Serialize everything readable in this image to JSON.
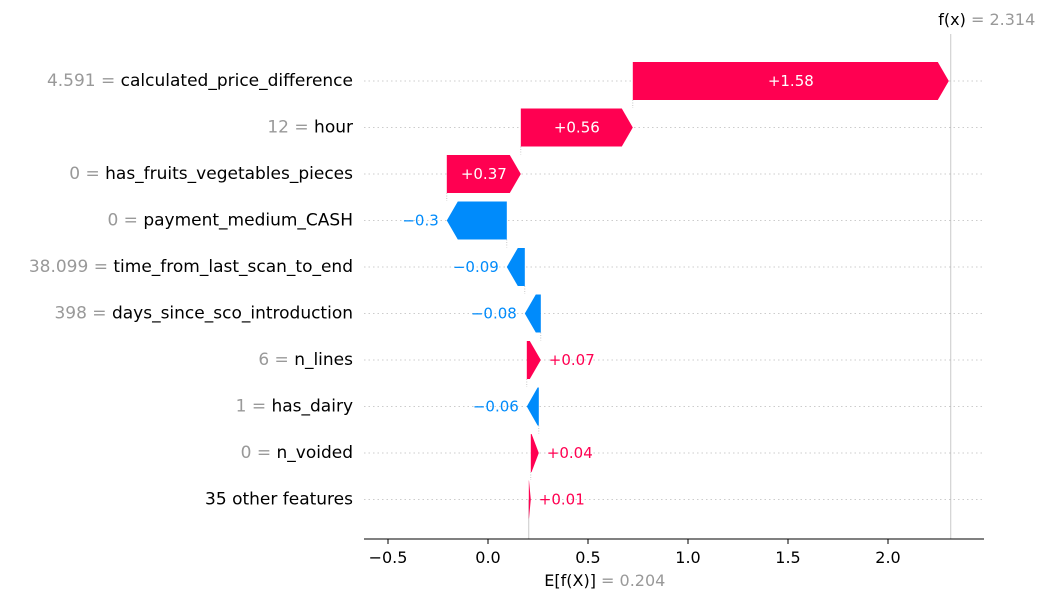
{
  "chart_data": {
    "type": "waterfall",
    "title": "",
    "xlabel": "",
    "ylabel": "",
    "base_value": 0.204,
    "base_value_text": "0.204",
    "base_value_label": "E[f(X)]",
    "output_value": 2.314,
    "output_value_text": "2.314",
    "output_value_label": "f(x)",
    "xlim": [
      -0.62,
      2.48
    ],
    "xticks": [
      -0.5,
      0.0,
      0.5,
      1.0,
      1.5,
      2.0
    ],
    "xtick_labels": [
      "−0.5",
      "0.0",
      "0.5",
      "1.0",
      "1.5",
      "2.0"
    ],
    "colors": {
      "positive": "#ff0051",
      "negative": "#008bfb",
      "muted": "#999999",
      "grid": "#cccccc"
    },
    "features": [
      {
        "value": "4.591",
        "name": "calculated_price_difference",
        "contribution": 1.58,
        "label": "+1.58"
      },
      {
        "value": "12",
        "name": "hour",
        "contribution": 0.56,
        "label": "+0.56"
      },
      {
        "value": "0",
        "name": "has_fruits_vegetables_pieces",
        "contribution": 0.37,
        "label": "+0.37"
      },
      {
        "value": "0",
        "name": "payment_medium_CASH",
        "contribution": -0.3,
        "label": "−0.3"
      },
      {
        "value": "38.099",
        "name": "time_from_last_scan_to_end",
        "contribution": -0.09,
        "label": "−0.09"
      },
      {
        "value": "398",
        "name": "days_since_sco_introduction",
        "contribution": -0.08,
        "label": "−0.08"
      },
      {
        "value": "6",
        "name": "n_lines",
        "contribution": 0.07,
        "label": "+0.07"
      },
      {
        "value": "1",
        "name": "has_dairy",
        "contribution": -0.06,
        "label": "−0.06"
      },
      {
        "value": "0",
        "name": "n_voided",
        "contribution": 0.04,
        "label": "+0.04"
      },
      {
        "value": "",
        "name": "35 other features",
        "contribution": 0.01,
        "label": "+0.01"
      }
    ]
  }
}
